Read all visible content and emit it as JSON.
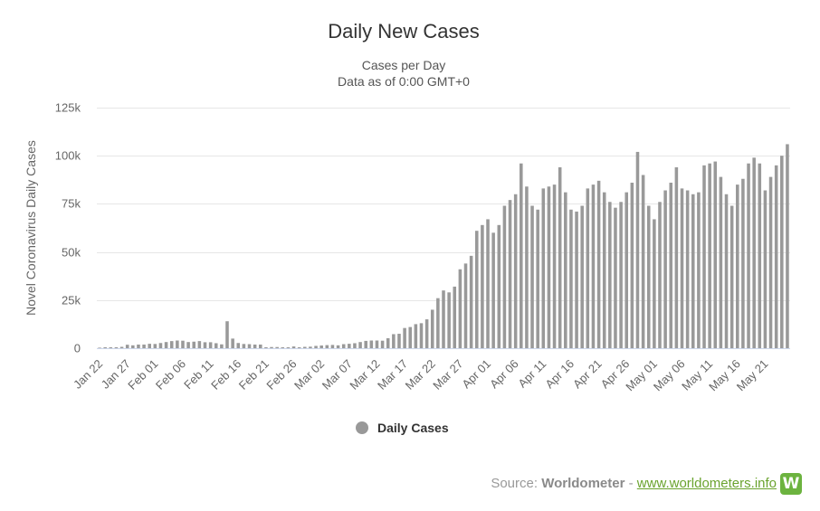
{
  "chart_data": {
    "type": "bar",
    "title": "Daily New Cases",
    "subtitle_lines": [
      "Cases per Day",
      "Data as of 0:00 GMT+0"
    ],
    "ylabel": "Novel Coronavirus Daily Cases",
    "xlabel": "",
    "ylim": [
      0,
      125000
    ],
    "yticks": [
      0,
      25000,
      50000,
      75000,
      100000,
      125000
    ],
    "ytick_labels": [
      "0",
      "25k",
      "50k",
      "75k",
      "100k",
      "125k"
    ],
    "xtick_labels": [
      "Jan 22",
      "Jan 27",
      "Feb 01",
      "Feb 06",
      "Feb 11",
      "Feb 16",
      "Feb 21",
      "Feb 26",
      "Mar 02",
      "Mar 07",
      "Mar 12",
      "Mar 17",
      "Mar 22",
      "Mar 27",
      "Apr 01",
      "Apr 06",
      "Apr 11",
      "Apr 16",
      "Apr 21",
      "Apr 26",
      "May 01",
      "May 06",
      "May 11",
      "May 16",
      "May 21"
    ],
    "xtick_step": 5,
    "grid": true,
    "legend_position": "bottom-center",
    "series": [
      {
        "name": "Daily Cases",
        "color": "#999999",
        "values": [
          0,
          100,
          250,
          500,
          700,
          1800,
          1500,
          1900,
          1900,
          2300,
          2200,
          2700,
          3200,
          3700,
          4000,
          3900,
          3200,
          3400,
          3700,
          3100,
          3100,
          2600,
          2000,
          14000,
          5000,
          2700,
          2200,
          2100,
          1900,
          1900,
          500,
          600,
          600,
          400,
          300,
          900,
          500,
          700,
          800,
          1200,
          1400,
          1600,
          1700,
          1500,
          2100,
          2300,
          2600,
          3200,
          3800,
          4000,
          4000,
          3900,
          5200,
          7300,
          7500,
          10500,
          11000,
          12500,
          13000,
          15000,
          20000,
          26000,
          30000,
          29000,
          32000,
          41000,
          44000,
          48000,
          61000,
          64000,
          67000,
          60000,
          64000,
          74000,
          77000,
          80000,
          96000,
          84000,
          74000,
          72000,
          83000,
          84000,
          85000,
          94000,
          81000,
          72000,
          71000,
          74000,
          83000,
          85000,
          87000,
          81000,
          76000,
          73000,
          76000,
          81000,
          86000,
          102000,
          90000,
          74000,
          67000,
          76000,
          82000,
          86000,
          94000,
          83000,
          82000,
          80000,
          81000,
          95000,
          96000,
          97000,
          89000,
          80000,
          74000,
          85000,
          88000,
          96000,
          99000,
          96000,
          82000,
          89000,
          95000,
          100000,
          106000
        ]
      }
    ]
  },
  "source": {
    "prefix": "Source: ",
    "name": "Worldometer",
    "separator": " - ",
    "link_text": "www.worldometers.info",
    "logo_letter": "W"
  }
}
